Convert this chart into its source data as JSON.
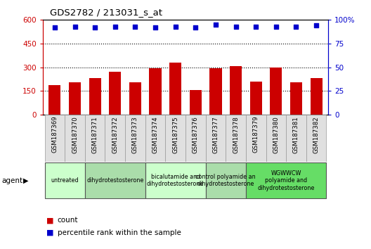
{
  "title": "GDS2782 / 213031_s_at",
  "samples": [
    "GSM187369",
    "GSM187370",
    "GSM187371",
    "GSM187372",
    "GSM187373",
    "GSM187374",
    "GSM187375",
    "GSM187376",
    "GSM187377",
    "GSM187378",
    "GSM187379",
    "GSM187380",
    "GSM187381",
    "GSM187382"
  ],
  "count_values": [
    185,
    205,
    230,
    270,
    205,
    295,
    330,
    155,
    295,
    305,
    210,
    300,
    205,
    230
  ],
  "percentile_values": [
    92,
    93,
    92,
    93,
    93,
    92,
    93,
    92,
    95,
    93,
    93,
    93,
    93,
    94
  ],
  "bar_color": "#CC0000",
  "dot_color": "#0000CC",
  "left_ylim": [
    0,
    600
  ],
  "right_ylim": [
    0,
    100
  ],
  "left_yticks": [
    0,
    150,
    300,
    450,
    600
  ],
  "right_yticks": [
    0,
    25,
    50,
    75,
    100
  ],
  "right_yticklabels": [
    "0",
    "25",
    "50",
    "75",
    "100%"
  ],
  "grid_values": [
    150,
    300,
    450
  ],
  "agent_groups": [
    {
      "label": "untreated",
      "indices": [
        0,
        1
      ],
      "color": "#CCFFCC"
    },
    {
      "label": "dihydrotestosterone",
      "indices": [
        2,
        3,
        4
      ],
      "color": "#AADDAA"
    },
    {
      "label": "bicalutamide and\ndihydrotestosterone",
      "indices": [
        5,
        6,
        7
      ],
      "color": "#CCFFCC"
    },
    {
      "label": "control polyamide an\ndihydrotestosterone",
      "indices": [
        8,
        9
      ],
      "color": "#AADDAA"
    },
    {
      "label": "WGWWCW\npolyamide and\ndihydrotestosterone",
      "indices": [
        10,
        11,
        12,
        13
      ],
      "color": "#66DD66"
    }
  ],
  "agent_label": "agent",
  "title_color": "#000000",
  "left_axis_color": "#CC0000",
  "right_axis_color": "#0000CC",
  "sample_cell_color": "#E0E0E0",
  "sample_cell_edge": "#999999"
}
